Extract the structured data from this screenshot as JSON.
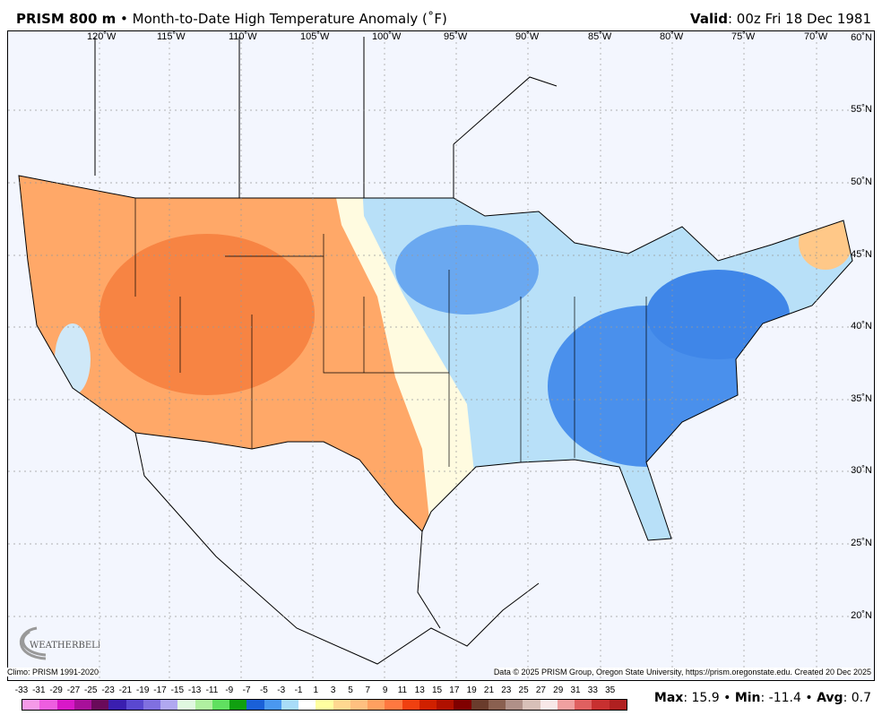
{
  "header": {
    "product": "PRISM 800 m",
    "separator": "•",
    "description": "Month-to-Date High Temperature Anomaly (˚F)",
    "valid_label": "Valid",
    "valid_value": ": 00z Fri 18 Dec 1981"
  },
  "map": {
    "longitude_labels": [
      "120˚W",
      "115˚W",
      "110˚W",
      "105˚W",
      "100˚W",
      "95˚W",
      "90˚W",
      "85˚W",
      "80˚W",
      "75˚W",
      "70˚W"
    ],
    "latitude_labels": [
      "60˚N",
      "55˚N",
      "50˚N",
      "45˚N",
      "40˚N",
      "35˚N",
      "30˚N",
      "25˚N",
      "20˚N"
    ],
    "logo_text": "WEATHERBELL Analytics LLC"
  },
  "footer": {
    "climo": "Climo: PRISM 1991-2020",
    "credit": "Data © 2025 PRISM Group, Oregon State University, https://prism.oregonstate.edu. Created 20 Dec 2025"
  },
  "legend": {
    "ticks": [
      "-33",
      "-31",
      "-29",
      "-27",
      "-25",
      "-23",
      "-21",
      "-19",
      "-17",
      "-15",
      "-13",
      "-11",
      "-9",
      "-7",
      "-5",
      "-3",
      "-1",
      "1",
      "3",
      "5",
      "7",
      "9",
      "11",
      "13",
      "15",
      "17",
      "19",
      "21",
      "23",
      "25",
      "27",
      "29",
      "31",
      "33",
      "35"
    ],
    "colors": [
      "#f59ae8",
      "#ee5ee0",
      "#d818c8",
      "#a8109a",
      "#6a0a5a",
      "#3a1eb0",
      "#5a48d0",
      "#8070e0",
      "#b0a8f0",
      "#e0f8e0",
      "#b0f0a0",
      "#60e060",
      "#10a010",
      "#1a60d8",
      "#4a98f0",
      "#a8dcf8",
      "#ffffff",
      "#ffffa0",
      "#ffd890",
      "#ffc080",
      "#ffa060",
      "#ff7840",
      "#f04010",
      "#d02000",
      "#b01000",
      "#800000",
      "#6a3c2c",
      "#8a6050",
      "#b09088",
      "#d8c0b8",
      "#f8e8e8",
      "#f0a0a0",
      "#e06060",
      "#c83030",
      "#b02020"
    ]
  },
  "stats": {
    "max_label": "Max",
    "max_value": ": 15.9 • ",
    "min_label": "Min",
    "min_value": ": -11.4 • ",
    "avg_label": "Avg",
    "avg_value": ": 0.7"
  }
}
